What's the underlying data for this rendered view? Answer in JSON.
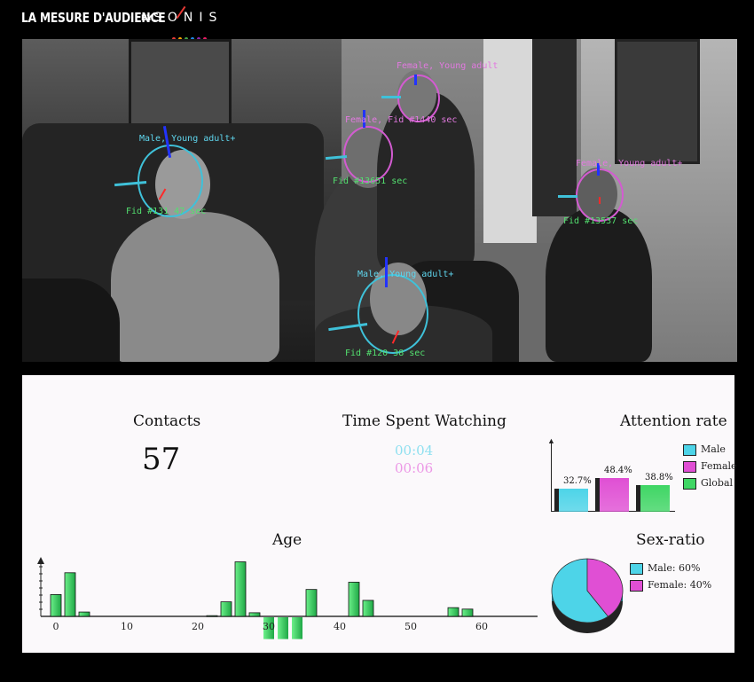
{
  "brand": {
    "title": "LA MESURE D'AUDIENCE",
    "by": "BY",
    "logo": "SONIS",
    "logo_dot_colors": [
      "#e53935",
      "#f4a300",
      "#43a047",
      "#1e88e5",
      "#8e24aa",
      "#e91e63"
    ]
  },
  "video": {
    "faces": [
      {
        "label": "Male, Young adult+",
        "fid": "Fid #131  47 sec",
        "gender": "male"
      },
      {
        "label": "Female, Fid #1440 sec",
        "fid": "",
        "gender": "female"
      },
      {
        "label": "Female, Fid",
        "fid": "Fid #13651 sec",
        "gender": "female"
      },
      {
        "label": "Female, Young adult+",
        "fid": "Fid #13537 sec",
        "gender": "female"
      },
      {
        "label": "Male, Young adult+",
        "fid": "Fid #120    38 sec",
        "gender": "male"
      }
    ]
  },
  "stats": {
    "contacts_label": "Contacts",
    "contacts_value": "57",
    "time_label": "Time Spent Watching",
    "time_male": "00:04",
    "time_female": "00:06",
    "attention_label": "Attention rate",
    "age_label": "Age",
    "sex_ratio_label": "Sex-ratio"
  },
  "attention_legend": {
    "male": "Male",
    "female": "Female",
    "global": "Global"
  },
  "sex_ratio_legend": {
    "male": "Male: 60%",
    "female": "Female: 40%"
  },
  "colors": {
    "male": "#4dd4e8",
    "female": "#e04fd4",
    "global": "#3fd664",
    "age_bar": "#2ecc55"
  },
  "chart_data": [
    {
      "type": "bar",
      "title": "Attention rate",
      "categories": [
        "Male",
        "Female",
        "Global"
      ],
      "values": [
        32.7,
        48.4,
        38.8
      ],
      "value_labels": [
        "32.7%",
        "48.4%",
        "38.8%"
      ],
      "legend": "right"
    },
    {
      "type": "bar",
      "title": "Age",
      "x_ticks": [
        "0",
        "10",
        "20",
        "30",
        "40",
        "50",
        "60"
      ],
      "xlim": [
        -1,
        69
      ],
      "bars": [
        {
          "x": 0,
          "y": 3
        },
        {
          "x": 2,
          "y": 6
        },
        {
          "x": 4,
          "y": 0.6
        },
        {
          "x": 22,
          "y": 0.1
        },
        {
          "x": 24,
          "y": 2
        },
        {
          "x": 26,
          "y": 7.5
        },
        {
          "x": 28,
          "y": 0.5
        },
        {
          "x": 30,
          "y": -3
        },
        {
          "x": 32,
          "y": -3
        },
        {
          "x": 34,
          "y": -3
        },
        {
          "x": 36,
          "y": 3.7
        },
        {
          "x": 42,
          "y": 4.7
        },
        {
          "x": 44,
          "y": 2.2
        },
        {
          "x": 56,
          "y": 1.2
        },
        {
          "x": 58,
          "y": 1
        }
      ]
    },
    {
      "type": "pie",
      "title": "Sex-ratio",
      "categories": [
        "Male",
        "Female"
      ],
      "values": [
        60,
        40
      ]
    }
  ]
}
